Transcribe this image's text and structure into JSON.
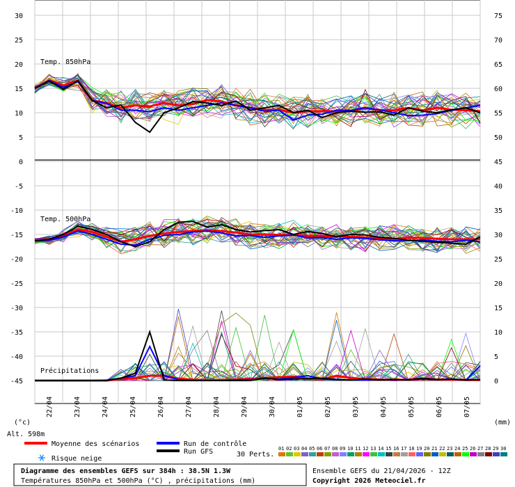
{
  "chart_data": {
    "type": "line",
    "x_dates": [
      "22/04",
      "23/04",
      "24/04",
      "25/04",
      "26/04",
      "27/04",
      "28/04",
      "29/04",
      "30/04",
      "01/05",
      "02/05",
      "03/05",
      "04/05",
      "05/05",
      "06/05",
      "07/05"
    ],
    "x_range_days": [
      0,
      16
    ],
    "y_left_ticks": [
      30,
      25,
      20,
      15,
      10,
      5,
      0,
      -5,
      -10,
      -15,
      -20,
      -25,
      -30,
      -35,
      -40,
      -45
    ],
    "y_right_ticks": [
      75,
      70,
      65,
      60,
      55,
      50,
      45,
      40,
      35,
      30,
      25,
      20,
      15,
      10,
      5,
      0
    ],
    "left_unit": "(°c)",
    "right_unit": "(mm)",
    "panel_labels": {
      "t850": "Temp. 850hPa",
      "t500": "Temp. 500hPa",
      "precip": "Précipitations"
    },
    "altitude": "Alt. 598m",
    "grid": true,
    "series": [
      {
        "name": "Moyenne des scénarios",
        "color": "#ff0000",
        "t850": [
          15,
          16.6,
          15.6,
          16.6,
          12.5,
          12,
          11,
          11.5,
          11.3,
          12,
          11.5,
          11.8,
          12.6,
          12.3,
          11.5,
          11,
          10.6,
          10.6,
          10,
          10.3,
          10.3,
          10.3,
          10.3,
          11,
          10.5,
          10.5,
          11,
          10.5,
          11,
          10.6,
          10.5,
          10.3
        ],
        "t500": [
          -16.3,
          -16.2,
          -15.3,
          -14,
          -14.5,
          -15.5,
          -16.5,
          -16,
          -15.3,
          -14.8,
          -14.5,
          -14.3,
          -14.1,
          -14.3,
          -14.6,
          -15,
          -15,
          -15.1,
          -15.1,
          -15.3,
          -15.3,
          -15.4,
          -15.5,
          -15.6,
          -15.8,
          -15.9,
          -15.7,
          -15.7,
          -15.9,
          -16,
          -16,
          -16
        ],
        "precip": [
          0,
          0,
          0,
          0,
          0,
          0,
          0.3,
          0.5,
          1,
          1,
          0.4,
          0.2,
          0.1,
          0.1,
          0.2,
          0.3,
          0.5,
          0.7,
          0.8,
          0.4,
          0.2,
          1,
          0.5,
          0.3,
          0.2,
          0.1,
          0.2,
          0.4,
          0.2,
          0.2,
          0.1,
          0.1
        ]
      },
      {
        "name": "Run de contrôle",
        "color": "#0000ff",
        "t850": [
          15,
          16.6,
          15.2,
          16.4,
          12.5,
          11.9,
          10.5,
          10.5,
          10.2,
          11,
          10.5,
          11,
          11.5,
          12,
          11.5,
          11,
          10.3,
          10.5,
          8.5,
          9.5,
          9.7,
          10.5,
          10.5,
          11,
          10.6,
          10,
          9.4,
          9.5,
          9.8,
          10.5,
          11,
          11.5
        ],
        "t500": [
          -16.3,
          -16.2,
          -15.5,
          -14.3,
          -15,
          -16,
          -17,
          -17.2,
          -16,
          -15.2,
          -15,
          -14.5,
          -14.3,
          -14.7,
          -15.3,
          -15.2,
          -15.6,
          -15.3,
          -15.1,
          -15.7,
          -15.6,
          -16,
          -15.7,
          -15.8,
          -16.1,
          -16.3,
          -16.3,
          -16.1,
          -16.4,
          -16.5,
          -16.2,
          -16.5
        ],
        "precip": [
          0,
          0,
          0,
          0,
          0,
          0.1,
          0.5,
          1,
          7,
          1,
          0.2,
          0,
          0,
          0,
          0.1,
          0.2,
          0.4,
          0.3,
          0.6,
          1,
          0.3,
          0.2,
          0.1,
          0.1,
          0.2,
          0.1,
          0.2,
          0.3,
          0.2,
          0.3,
          0.1,
          3
        ]
      },
      {
        "name": "Run GFS",
        "color": "#000000",
        "t850": [
          15,
          16.5,
          14.8,
          16.6,
          12.5,
          11,
          11.6,
          8,
          6,
          10,
          11,
          12.3,
          12,
          11.5,
          12.4,
          10.5,
          11,
          11.5,
          10,
          10.5,
          9,
          10,
          10.3,
          10.1,
          10.2,
          9.5,
          11,
          10.3,
          10,
          10.6,
          11,
          10
        ],
        "t500": [
          -16.3,
          -16,
          -15,
          -13.3,
          -14,
          -15,
          -16.5,
          -17.5,
          -16.5,
          -14,
          -12.5,
          -12.3,
          -13.5,
          -13,
          -14,
          -14.5,
          -14.2,
          -14,
          -15,
          -14.4,
          -14.8,
          -15.5,
          -15,
          -15.1,
          -15.6,
          -15.8,
          -16.2,
          -16.4,
          -16.6,
          -16.8,
          -17,
          -15.5
        ],
        "precip": [
          0,
          0,
          0,
          0,
          0,
          0,
          0.5,
          1.5,
          10,
          0.1,
          0,
          0,
          0,
          0,
          0,
          0,
          0.5,
          0.2,
          0.3,
          0.4,
          0.5,
          0.2,
          0.1,
          0.3,
          0.1,
          0.2,
          0.1,
          0.5,
          0.2,
          0.3,
          0.1,
          0.2
        ]
      }
    ]
  },
  "legend": {
    "mean": "Moyenne des scénarios",
    "control": "Run de contrôle",
    "gfs": "Run GFS",
    "snow": "Risque neige",
    "perts": "30 Perts."
  },
  "pert_numbers": [
    "01",
    "02",
    "03",
    "04",
    "05",
    "06",
    "07",
    "08",
    "09",
    "10",
    "11",
    "12",
    "13",
    "14",
    "15",
    "16",
    "17",
    "18",
    "19",
    "20",
    "21",
    "22",
    "23",
    "24",
    "25",
    "26",
    "27",
    "28",
    "29",
    "30"
  ],
  "pert_colors": [
    "#e07800",
    "#60c030",
    "#e0c800",
    "#8060d0",
    "#30a0a0",
    "#c04000",
    "#80a000",
    "#c060d0",
    "#8080ff",
    "#00a060",
    "#b08000",
    "#ff00ff",
    "#40c040",
    "#00c0c0",
    "#404040",
    "#c08040",
    "#a0a0a0",
    "#ff6060",
    "#6060ff",
    "#808000",
    "#0060c0",
    "#c0c000",
    "#006060",
    "#c06000",
    "#00ff00",
    "#c000c0",
    "#808080",
    "#800000",
    "#4040c0",
    "#008080"
  ],
  "footer": {
    "title": "Diagramme des ensembles GEFS sur 384h : 38.5N 1.3W",
    "subtitle": "Températures 850hPa et 500hPa (°C) , précipitations (mm)",
    "run": "Ensemble GEFS du 21/04/2026 - 12Z",
    "copyright": "Copyright 2026 Meteociel.fr"
  }
}
